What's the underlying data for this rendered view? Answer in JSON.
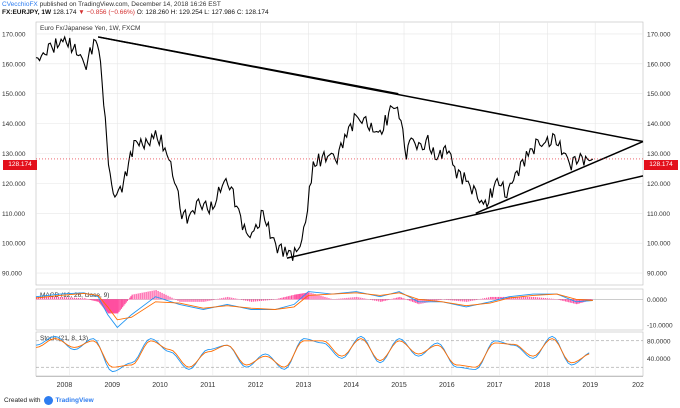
{
  "header": {
    "author": "CVecchioFX",
    "published_text": "published on TradingView.com, December 14, 2018 16:26 EST",
    "symbol_line_prefix": "FX:EURJPY, 1W",
    "ohlc_main": "128.174",
    "change": "▼ −0.856 (−0.66%)",
    "ohlc_rest": "O: 128.260  H: 129.254  L: 127.986  C: 128.174"
  },
  "chart_data": [
    {
      "type": "line",
      "title": "Euro Fx/Japanese Yen, 1W, FXCM",
      "x_ticks": [
        "2008",
        "2009",
        "2010",
        "2011",
        "2012",
        "2013",
        "2014",
        "2015",
        "2016",
        "2017",
        "2018",
        "2019",
        "202"
      ],
      "y_ticks": [
        "90.000",
        "100.000",
        "110.000",
        "120.000",
        "130.000",
        "140.000",
        "150.000",
        "160.000",
        "170.000"
      ],
      "ylim": [
        86,
        174
      ],
      "last_price": "128.174",
      "series": [
        {
          "x": [
            2007.3,
            2007.6,
            2007.9,
            2008.15,
            2008.35,
            2008.55,
            2008.65,
            2008.75,
            2008.85,
            2008.95,
            2009.1,
            2009.2,
            2009.35,
            2009.6,
            2009.8,
            2010.0,
            2010.2,
            2010.35,
            2010.5,
            2010.7,
            2010.85,
            2011.0,
            2011.2,
            2011.35,
            2011.5,
            2011.7,
            2011.9,
            2012.05,
            2012.2,
            2012.35,
            2012.55,
            2012.75,
            2012.9,
            2013.1,
            2013.4,
            2013.6,
            2013.8,
            2014.0,
            2014.2,
            2014.5,
            2014.75,
            2014.9,
            2015.05,
            2015.15,
            2015.35,
            2015.5,
            2015.65,
            2015.9,
            2016.1,
            2016.3,
            2016.5,
            2016.7,
            2016.95,
            2017.15,
            2017.4,
            2017.6,
            2017.8,
            2018.0,
            2018.15,
            2018.3,
            2018.5,
            2018.65,
            2018.8,
            2018.95
          ],
          "values": [
            161,
            165,
            168,
            164,
            160,
            169,
            160,
            140,
            122,
            116,
            119,
            124,
            134,
            133,
            136,
            132,
            122,
            110,
            109,
            113,
            112,
            111,
            121,
            120,
            113,
            102,
            104,
            110,
            103,
            99,
            97,
            96,
            103,
            126,
            130,
            129,
            137,
            142,
            140,
            136,
            146,
            144,
            130,
            135,
            131,
            134,
            128,
            132,
            124,
            121,
            116,
            112,
            121,
            117,
            125,
            130,
            133,
            133,
            135,
            131,
            127,
            129,
            128,
            128.174
          ]
        }
      ],
      "trendlines": [
        {
          "x": [
            2008.6,
            2020.0
          ],
          "y": [
            169,
            134
          ]
        },
        {
          "x": [
            2008.6,
            2014.88
          ],
          "y": [
            169,
            150
          ]
        },
        {
          "x": [
            2012.55,
            2020.0
          ],
          "y": [
            95,
            122.5
          ]
        },
        {
          "x": [
            2016.5,
            2020.0
          ],
          "y": [
            110,
            134
          ]
        }
      ]
    },
    {
      "type": "line",
      "title": "MACD (12, 26, close, 9)",
      "y_ticks": [
        "0.0000",
        "-10.0000"
      ],
      "ylim": [
        -12,
        4
      ],
      "x": [
        2007.3,
        2007.8,
        2008.3,
        2008.6,
        2008.8,
        2009.0,
        2009.3,
        2009.8,
        2010.3,
        2010.8,
        2011.3,
        2011.8,
        2012.3,
        2012.7,
        2013.0,
        2013.5,
        2014.0,
        2014.5,
        2014.9,
        2015.3,
        2015.8,
        2016.3,
        2016.8,
        2017.2,
        2017.7,
        2018.2,
        2018.6,
        2018.95
      ],
      "series": [
        {
          "name": "MACD",
          "values": [
            1,
            2,
            2.5,
            1,
            -6,
            -11,
            -6,
            1,
            -2,
            -4,
            -2,
            -4,
            -4,
            -2,
            3,
            2,
            3,
            1,
            3,
            -1,
            -1,
            -3,
            -1,
            1,
            2,
            2,
            -1,
            -0.5
          ]
        },
        {
          "name": "Signal",
          "values": [
            0.5,
            1.5,
            2.3,
            1.5,
            -3,
            -8,
            -7,
            -1,
            -1.5,
            -3.5,
            -2.5,
            -3.5,
            -4,
            -3,
            1.5,
            2,
            2.5,
            1.5,
            2.5,
            0,
            -1,
            -2.5,
            -1.5,
            0.5,
            1.5,
            2,
            0,
            -0.5
          ]
        }
      ]
    },
    {
      "type": "line",
      "title": "Stoch (21, 8, 13)",
      "y_ticks": [
        "80.0000",
        "40.0000"
      ],
      "ylim": [
        0,
        100
      ],
      "x": [
        2007.3,
        2007.7,
        2008.1,
        2008.5,
        2008.9,
        2009.3,
        2009.7,
        2010.1,
        2010.5,
        2010.9,
        2011.3,
        2011.7,
        2012.1,
        2012.5,
        2012.9,
        2013.3,
        2013.7,
        2014.1,
        2014.5,
        2014.9,
        2015.3,
        2015.7,
        2016.1,
        2016.5,
        2016.9,
        2017.3,
        2017.7,
        2018.1,
        2018.5,
        2018.95
      ],
      "series": [
        {
          "name": "%K",
          "values": [
            70,
            90,
            60,
            85,
            10,
            30,
            85,
            55,
            15,
            60,
            70,
            20,
            50,
            15,
            85,
            75,
            40,
            90,
            30,
            85,
            45,
            75,
            20,
            15,
            80,
            70,
            40,
            90,
            25,
            55
          ]
        },
        {
          "name": "%D",
          "values": [
            65,
            85,
            65,
            80,
            20,
            25,
            80,
            60,
            20,
            55,
            70,
            25,
            45,
            20,
            80,
            80,
            45,
            85,
            35,
            80,
            50,
            70,
            25,
            20,
            75,
            72,
            45,
            85,
            30,
            52
          ]
        }
      ]
    }
  ],
  "footer": {
    "created_with": "Created with",
    "brand": "TradingView"
  },
  "colors": {
    "price_line": "#000000",
    "price_tag": "#e3101c",
    "macd_line": "#2196f3",
    "signal_line": "#ff6d00",
    "hist_color": "#ff4fa0",
    "stoch_k": "#2196f3",
    "stoch_d": "#ff6d00",
    "grid": "#e6e6e6",
    "footer_brand": "#2e7df0"
  }
}
